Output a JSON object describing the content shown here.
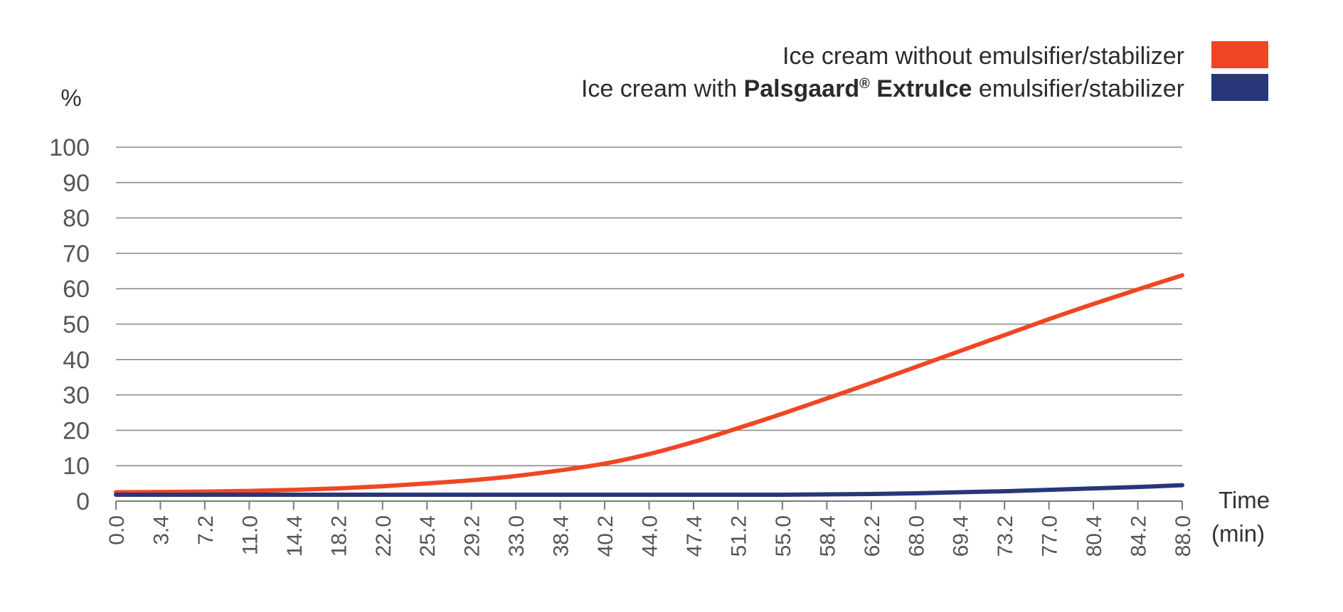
{
  "chart_data": {
    "type": "line",
    "y_unit_label": "%",
    "xlabel_line1": "Time",
    "xlabel_line2": "(min)",
    "ylim": [
      0,
      100
    ],
    "y_ticks": [
      "0",
      "10",
      "20",
      "30",
      "40",
      "50",
      "60",
      "70",
      "80",
      "90",
      "100"
    ],
    "x_ticks": [
      "0.0",
      "3.4",
      "7.2",
      "11.0",
      "14.4",
      "18.2",
      "22.0",
      "25.4",
      "29.2",
      "33.0",
      "38.4",
      "40.2",
      "44.0",
      "47.4",
      "51.2",
      "55.0",
      "58.4",
      "62.2",
      "68.0",
      "69.4",
      "73.2",
      "77.0",
      "80.4",
      "84.2",
      "88.0"
    ],
    "grid": true,
    "legend_position": "top-right",
    "series": [
      {
        "name_parts": [
          "Ice cream without emulsifier/stabilizer"
        ],
        "color": "#f04624",
        "values": [
          2.5,
          2.6,
          2.7,
          2.9,
          3.2,
          3.6,
          4.2,
          5.0,
          5.9,
          7.1,
          8.7,
          10.6,
          13.3,
          16.7,
          20.6,
          24.7,
          29.0,
          33.4,
          37.9,
          42.4,
          46.9,
          51.4,
          55.7,
          59.8,
          63.8
        ]
      },
      {
        "name_parts": [
          "Ice cream with ",
          "Palsgaard",
          "®",
          " ExtruIce",
          " emulsifier/stabilizer"
        ],
        "color": "#28367a",
        "values": [
          1.8,
          1.8,
          1.8,
          1.8,
          1.8,
          1.8,
          1.8,
          1.8,
          1.8,
          1.8,
          1.8,
          1.8,
          1.8,
          1.8,
          1.8,
          1.8,
          1.9,
          2.0,
          2.2,
          2.5,
          2.8,
          3.2,
          3.6,
          4.0,
          4.5
        ]
      }
    ]
  }
}
